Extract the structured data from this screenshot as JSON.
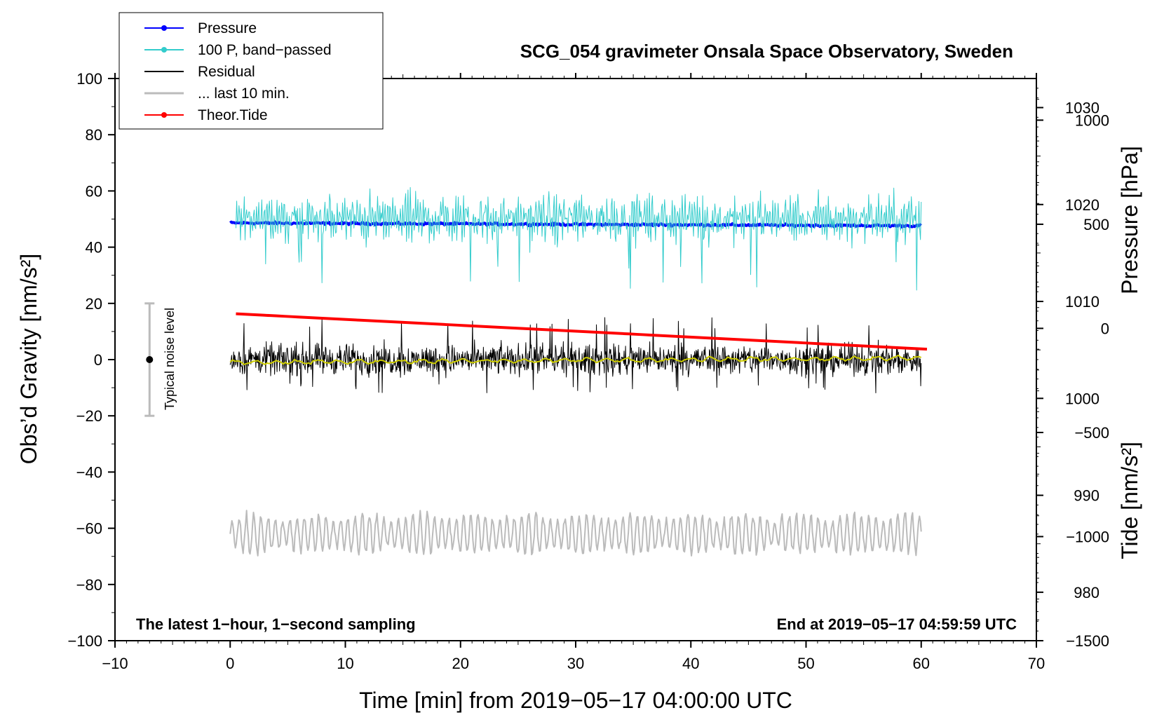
{
  "chart_data": {
    "type": "line",
    "title": "SCG_054 gravimeter Onsala Space Observatory, Sweden",
    "xlabel": "Time [min] from 2019−05−17 04:00:00 UTC",
    "ylabel_left": "Obs’d Gravity [nm/s²]",
    "ylabel_right_top": "Pressure [hPa]",
    "ylabel_right_bottom": "Tide [nm/s²]",
    "footer_left": "The latest 1−hour, 1−second sampling",
    "footer_right": "End at 2019−05−17 04:59:59 UTC",
    "noise_label": "Typical noise level",
    "xlim": [
      -10,
      70
    ],
    "ylim": [
      -100,
      100
    ],
    "pressure_ylim": [
      975,
      1033
    ],
    "tide_ylim": [
      -1500,
      1200
    ],
    "x_ticks": [
      -10,
      0,
      10,
      20,
      30,
      40,
      50,
      60,
      70
    ],
    "x_tick_labels": [
      "−10",
      "0",
      "10",
      "20",
      "30",
      "40",
      "50",
      "60",
      "70"
    ],
    "y_ticks": [
      100,
      80,
      60,
      40,
      20,
      0,
      -20,
      -40,
      -60,
      -80,
      -100
    ],
    "y_tick_labels": [
      "100",
      "80",
      "60",
      "40",
      "20",
      "0",
      "−20",
      "−40",
      "−60",
      "−80",
      "−100"
    ],
    "pressure_ticks": [
      1030,
      1020,
      1010,
      1000,
      990,
      980
    ],
    "pressure_tick_labels": [
      "1030",
      "1020",
      "1010",
      "1000",
      "990",
      "980"
    ],
    "tide_ticks": [
      1000,
      500,
      0,
      -500,
      -1000,
      -1500
    ],
    "tide_tick_labels": [
      "1000",
      "500",
      "0",
      "−500",
      "−1000",
      "−1500"
    ],
    "noise_bar": {
      "x": -7,
      "center": 0,
      "low": -20,
      "high": 20
    },
    "legend": [
      {
        "label": "Pressure",
        "color": "#0000ff",
        "marker": true
      },
      {
        "label": "100 P, band−passed",
        "color": "#33cccc",
        "marker": true
      },
      {
        "label": "Residual",
        "color": "#000000",
        "marker": false
      },
      {
        "label": "... last 10 min.",
        "color": "#bbbbbb",
        "marker": false
      },
      {
        "label": "Theor.Tide",
        "color": "#ff0000",
        "marker": true
      }
    ],
    "series": [
      {
        "name": "Pressure",
        "axis": "pressure",
        "color": "#0000ff",
        "x_range": [
          0,
          60
        ],
        "start": 1018.1,
        "end": 1017.8,
        "noise": 0.1
      },
      {
        "name": "100 P, band−passed",
        "axis": "gravity",
        "color": "#33cccc",
        "x_range": [
          0.5,
          60
        ],
        "center": 50,
        "amplitude": 9,
        "min": 23,
        "max": 69
      },
      {
        "name": "Residual",
        "axis": "gravity",
        "color": "#000000",
        "x_range": [
          0,
          60
        ],
        "center": 0,
        "amplitude": 8,
        "min": -12,
        "max": 15
      },
      {
        "name": "Residual smoothed",
        "axis": "gravity",
        "color": "#cccc00",
        "x_range": [
          0,
          60
        ],
        "start": -1,
        "end": 0.5
      },
      {
        "name": "... last 10 min.",
        "axis": "gravity",
        "color": "#bbbbbb",
        "x_range": [
          0,
          60
        ],
        "center": -62,
        "amplitude": 7,
        "min": -74,
        "max": -50
      },
      {
        "name": "Theor.Tide",
        "axis": "tide",
        "color": "#ff0000",
        "x_range": [
          0.5,
          60.5
        ],
        "start": 70,
        "end": -100
      }
    ],
    "grid": false
  }
}
